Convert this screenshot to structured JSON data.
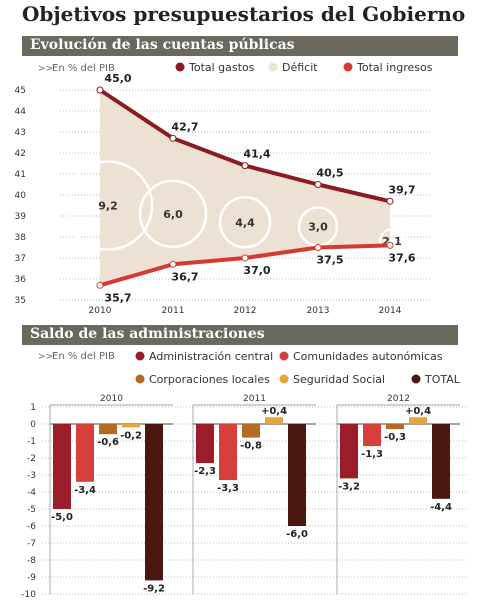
{
  "title": "Objetivos presupuestarios del Gobierno",
  "colors": {
    "total_gastos": "#8b1a22",
    "deficit": "#ece1d3",
    "total_ingresos": "#d43a32",
    "admin_central": "#9c1d2a",
    "ccaa": "#d7403a",
    "corporaciones": "#b46a20",
    "seguridad_social": "#e8a63a",
    "total": "#4a1711",
    "section_bar": "#6b685e"
  },
  "chart_data": [
    {
      "type": "area",
      "title": "Evolución de las cuentas públicas",
      "unit_label": "En % del PIB",
      "unit_marker": ">>",
      "x": [
        "2010",
        "2011",
        "2012",
        "2013",
        "2014"
      ],
      "ylim": [
        35,
        45
      ],
      "yticks": [
        35,
        36,
        37,
        38,
        39,
        40,
        41,
        42,
        43,
        44,
        45
      ],
      "grid": true,
      "legend_position": "top",
      "series": [
        {
          "name": "Total gastos",
          "values": [
            45.0,
            42.7,
            41.4,
            40.5,
            39.7
          ],
          "labels": [
            "45,0",
            "42,7",
            "41,4",
            "40,5",
            "39,7"
          ]
        },
        {
          "name": "Déficit",
          "values": [
            9.2,
            6.0,
            4.4,
            3.0,
            2.1
          ],
          "labels": [
            "9,2",
            "6,0",
            "4,4",
            "3,0",
            "2,1"
          ]
        },
        {
          "name": "Total ingresos",
          "values": [
            35.7,
            36.7,
            37.0,
            37.5,
            37.6
          ],
          "labels": [
            "35,7",
            "36,7",
            "37,0",
            "37,5",
            "37,6"
          ]
        }
      ]
    },
    {
      "type": "bar",
      "title": "Saldo de las administraciones",
      "unit_label": "En % del PIB",
      "unit_marker": ">>",
      "ylim": [
        -10,
        1
      ],
      "yticks": [
        1,
        0,
        -1,
        -2,
        -3,
        -4,
        -5,
        -6,
        -7,
        -8,
        -9,
        -10
      ],
      "grid": true,
      "legend_position": "top",
      "categories": [
        "2010",
        "2011",
        "2012"
      ],
      "series": [
        {
          "name": "Administración central",
          "values": [
            -5.0,
            -2.3,
            -3.2
          ],
          "labels": [
            "-5,0",
            "-2,3",
            "-3,2"
          ]
        },
        {
          "name": "Comunidades autonómicas",
          "values": [
            -3.4,
            -3.3,
            -1.3
          ],
          "labels": [
            "-3,4",
            "-3,3",
            "-1,3"
          ]
        },
        {
          "name": "Corporaciones locales",
          "values": [
            -0.6,
            -0.8,
            -0.3
          ],
          "labels": [
            "-0,6",
            "-0,8",
            "-0,3"
          ]
        },
        {
          "name": "Seguridad Social",
          "values": [
            -0.2,
            0.4,
            0.4
          ],
          "labels": [
            "-0,2",
            "+0,4",
            "+0,4"
          ]
        },
        {
          "name": "TOTAL",
          "values": [
            -9.2,
            -6.0,
            -4.4
          ],
          "labels": [
            "-9,2",
            "-6,0",
            "-4,4"
          ]
        }
      ]
    }
  ]
}
